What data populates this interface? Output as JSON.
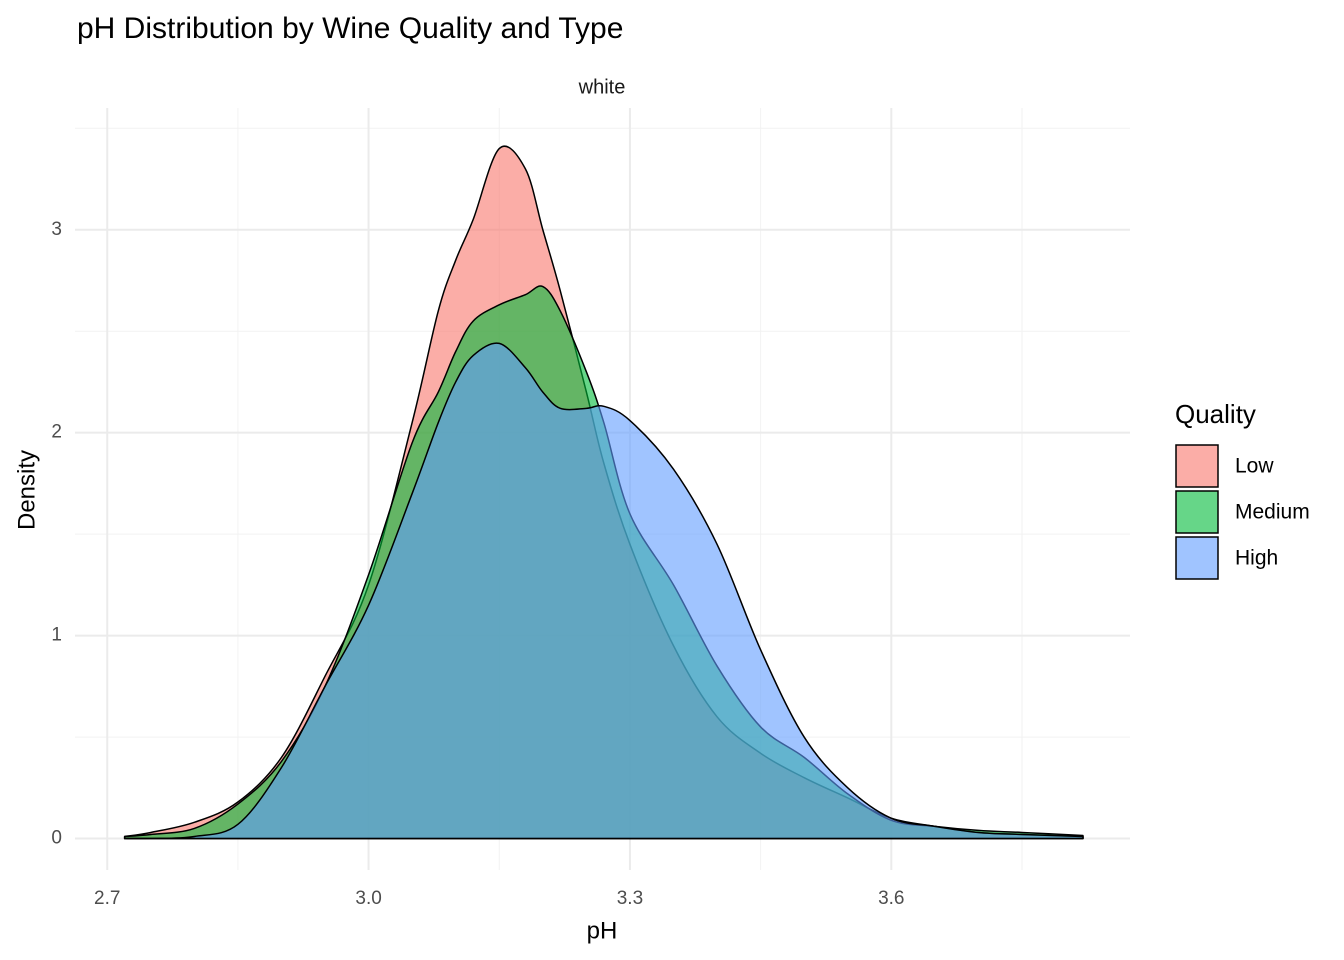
{
  "chart_data": {
    "type": "density",
    "title": "pH Distribution by Wine Quality and Type",
    "facet": "white",
    "x_label": "pH",
    "y_label": "Density",
    "legend_title": "Quality",
    "legend": "right",
    "x": [
      2.72,
      2.75,
      2.8,
      2.85,
      2.9,
      2.95,
      3.0,
      3.05,
      3.08,
      3.1,
      3.12,
      3.15,
      3.18,
      3.2,
      3.22,
      3.25,
      3.27,
      3.3,
      3.35,
      3.4,
      3.45,
      3.5,
      3.55,
      3.6,
      3.65,
      3.7,
      3.75,
      3.82
    ],
    "series": [
      {
        "name": "Low",
        "color": "#F8766D",
        "values": [
          0.01,
          0.03,
          0.08,
          0.18,
          0.4,
          0.8,
          1.25,
          2.05,
          2.6,
          2.85,
          3.05,
          3.4,
          3.3,
          3.0,
          2.7,
          2.2,
          1.85,
          1.45,
          0.95,
          0.6,
          0.42,
          0.3,
          0.2,
          0.1,
          0.06,
          0.03,
          0.02,
          0.01
        ]
      },
      {
        "name": "Medium",
        "color": "#00BA38",
        "values": [
          0.01,
          0.02,
          0.05,
          0.17,
          0.38,
          0.75,
          1.3,
          1.95,
          2.2,
          2.4,
          2.55,
          2.63,
          2.68,
          2.72,
          2.6,
          2.3,
          2.05,
          1.6,
          1.25,
          0.85,
          0.55,
          0.4,
          0.22,
          0.09,
          0.06,
          0.04,
          0.03,
          0.015
        ]
      },
      {
        "name": "High",
        "color": "#619CFF",
        "values": [
          0,
          0,
          0.01,
          0.07,
          0.35,
          0.75,
          1.15,
          1.7,
          2.05,
          2.25,
          2.38,
          2.44,
          2.32,
          2.2,
          2.12,
          2.12,
          2.13,
          2.06,
          1.82,
          1.45,
          0.93,
          0.5,
          0.25,
          0.1,
          0.06,
          0.03,
          0.02,
          0.01
        ]
      }
    ],
    "opacity": 0.6,
    "xlim": [
      2.663,
      3.874
    ],
    "ylim": [
      -0.155,
      3.6
    ],
    "xticks": [
      2.7,
      {
        "value": 3,
        "label": "3.0"
      },
      3.3,
      3.6
    ],
    "yticks": [
      0,
      1,
      2,
      3
    ],
    "x_minor_ticks": [
      2.85,
      3.15,
      3.45,
      3.75
    ],
    "y_minor_ticks": [
      0.5,
      1.5,
      2.5,
      3.5
    ],
    "grid": true
  }
}
